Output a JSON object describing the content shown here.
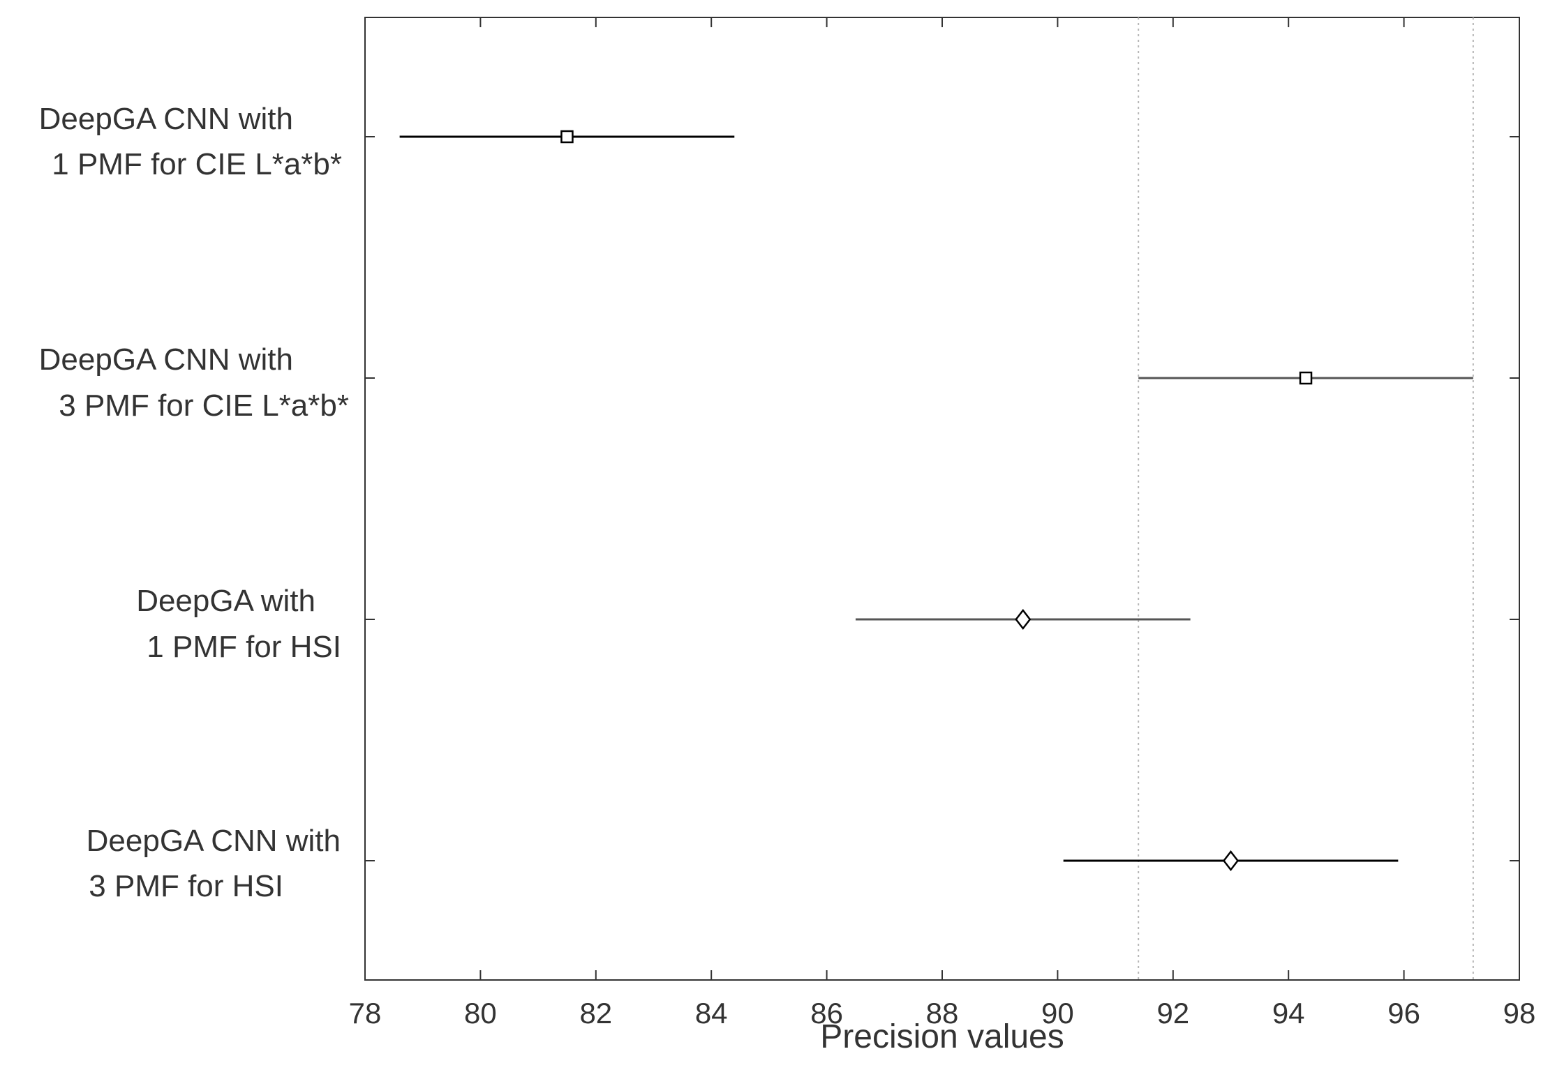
{
  "chart_data": {
    "type": "interval",
    "xlabel": "Precision  values",
    "xlim": [
      78,
      98
    ],
    "xticks": [
      78,
      80,
      82,
      84,
      86,
      88,
      90,
      92,
      94,
      96,
      98
    ],
    "grid": false,
    "reference_lines": [
      91.4,
      97.2
    ],
    "groups": [
      {
        "label_lines": [
          "DeepGA CNN with",
          "1 PMF for CIE L*a*b*"
        ],
        "estimate": 81.5,
        "lower": 78.6,
        "upper": 84.4,
        "marker": "square",
        "color": "#000000"
      },
      {
        "label_lines": [
          "DeepGA CNN with",
          "3 PMF for CIE L*a*b*"
        ],
        "estimate": 94.3,
        "lower": 91.4,
        "upper": 97.2,
        "marker": "square",
        "color": "#555555"
      },
      {
        "label_lines": [
          "DeepGA with",
          "1 PMF for HSI"
        ],
        "estimate": 89.4,
        "lower": 86.5,
        "upper": 92.3,
        "marker": "diamond",
        "color": "#555555"
      },
      {
        "label_lines": [
          "DeepGA CNN with",
          "3 PMF for HSI"
        ],
        "estimate": 93.0,
        "lower": 90.1,
        "upper": 95.9,
        "marker": "diamond",
        "color": "#000000"
      }
    ]
  }
}
